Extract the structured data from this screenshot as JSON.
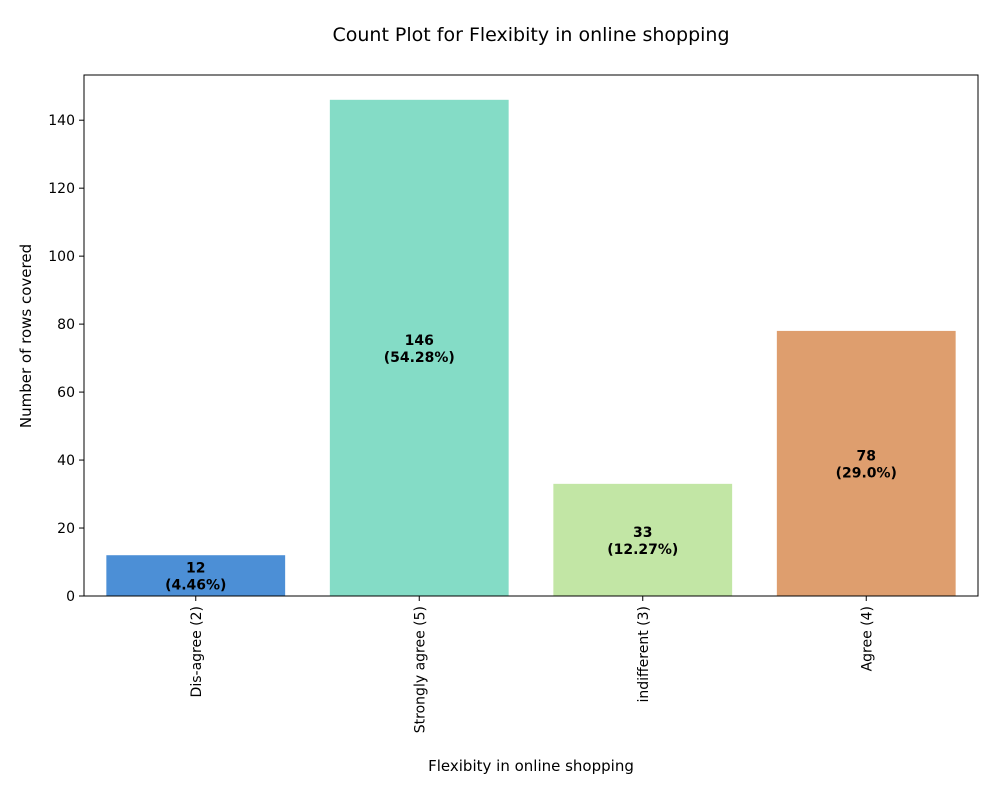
{
  "chart_data": {
    "type": "bar",
    "title": "Count Plot for Flexibity in online shopping",
    "xlabel": "Flexibity in online shopping",
    "ylabel": "Number of rows covered",
    "categories": [
      "Dis-agree (2)",
      "Strongly agree (5)",
      "indifferent (3)",
      "Agree (4)"
    ],
    "values": [
      12,
      146,
      33,
      78
    ],
    "data_labels": [
      [
        "12",
        "(4.46%)"
      ],
      [
        "146",
        "(54.28%)"
      ],
      [
        "33",
        "(12.27%)"
      ],
      [
        "78",
        "(29.0%)"
      ]
    ],
    "colors": [
      "#4c8fd6",
      "#84dcc6",
      "#c2e6a5",
      "#de9e6e"
    ],
    "yticks": [
      0,
      20,
      40,
      60,
      80,
      100,
      120,
      140
    ],
    "ylim": [
      0,
      153.3
    ],
    "grid": false,
    "legend": "none"
  }
}
